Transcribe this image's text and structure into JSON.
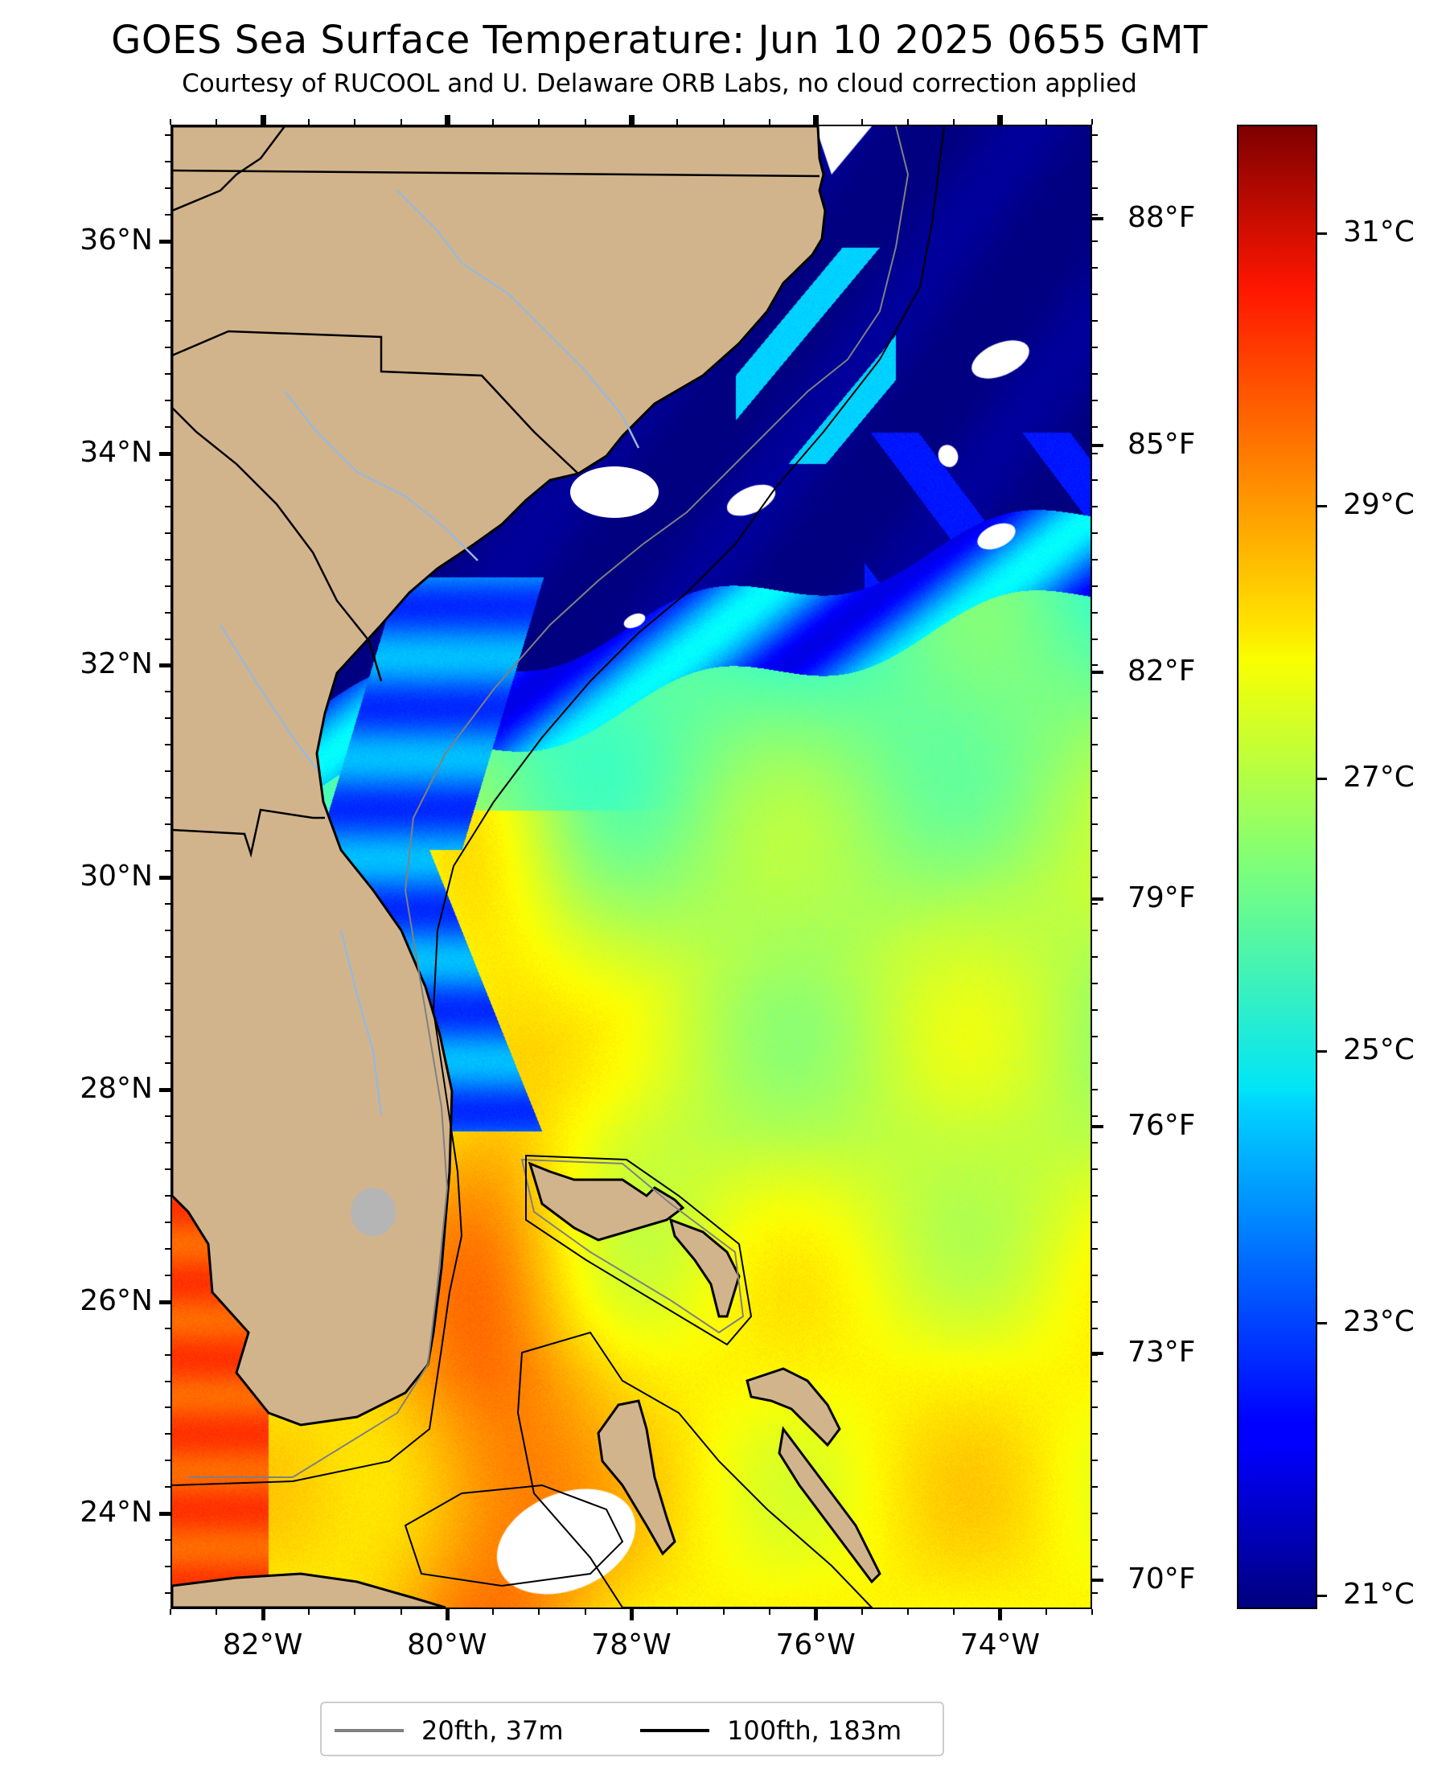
{
  "title": "GOES Sea Surface Temperature: Jun 10 2025 0655 GMT",
  "subtitle": "Courtesy of RUCOOL and U. Delaware ORB Labs, no cloud correction applied",
  "map": {
    "lon_range": [
      -83,
      -73
    ],
    "lat_range": [
      23.1,
      37.1
    ],
    "land_color": "#d2b48c",
    "lake_color": "#b5b5b5",
    "river_color": "#9bb8d6",
    "lat_labels": [
      {
        "lat": 36,
        "label": "36°N"
      },
      {
        "lat": 34,
        "label": "34°N"
      },
      {
        "lat": 32,
        "label": "32°N"
      },
      {
        "lat": 30,
        "label": "30°N"
      },
      {
        "lat": 28,
        "label": "28°N"
      },
      {
        "lat": 26,
        "label": "26°N"
      },
      {
        "lat": 24,
        "label": "24°N"
      }
    ],
    "lon_labels": [
      {
        "lon": -82,
        "label": "82°W"
      },
      {
        "lon": -80,
        "label": "80°W"
      },
      {
        "lon": -78,
        "label": "78°W"
      },
      {
        "lon": -76,
        "label": "76°W"
      },
      {
        "lon": -74,
        "label": "74°W"
      }
    ],
    "sst_regions_celsius": [
      {
        "region": "coastal shelf north of 32°N",
        "value": 21.0
      },
      {
        "region": "Carolina offshore band",
        "value": 21.3
      },
      {
        "region": "Georgia/Florida nearshore",
        "value": 24.0
      },
      {
        "region": "central Atlantic",
        "value": 26.6
      },
      {
        "region": "Gulf Stream / Florida Strait",
        "value": 28.5
      },
      {
        "region": "Gulf of Mexico, Florida Bay",
        "value": 29.8
      }
    ]
  },
  "fahrenheit_labels": [
    {
      "f": 88,
      "label": "88°F"
    },
    {
      "f": 85,
      "label": "85°F"
    },
    {
      "f": 82,
      "label": "82°F"
    },
    {
      "f": 79,
      "label": "79°F"
    },
    {
      "f": 76,
      "label": "76°F"
    },
    {
      "f": 73,
      "label": "73°F"
    },
    {
      "f": 70,
      "label": "70°F"
    }
  ],
  "colorbar": {
    "range_celsius": [
      20.9,
      31.8
    ],
    "colormap": "jet",
    "labels": [
      {
        "c": 31,
        "label": "31°C"
      },
      {
        "c": 29,
        "label": "29°C"
      },
      {
        "c": 27,
        "label": "27°C"
      },
      {
        "c": 25,
        "label": "25°C"
      },
      {
        "c": 23,
        "label": "23°C"
      },
      {
        "c": 21,
        "label": "21°C"
      }
    ]
  },
  "legend": {
    "items": [
      {
        "label": "20fth, 37m",
        "color": "#808080"
      },
      {
        "label": "100fth, 183m",
        "color": "#000000"
      }
    ]
  }
}
